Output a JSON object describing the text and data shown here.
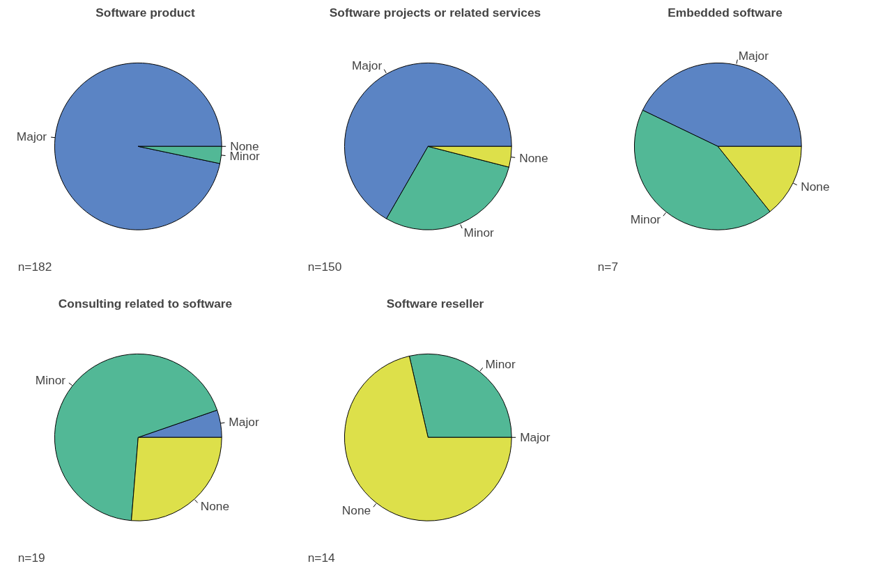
{
  "chart_data": [
    {
      "type": "pie",
      "title": "Software product",
      "categories": [
        "Major",
        "Minor",
        "None"
      ],
      "values": [
        96.7,
        3.3,
        0
      ],
      "colors": [
        "#5b84c4",
        "#52b896",
        "#dde04a"
      ],
      "annotations": [
        "n=182"
      ]
    },
    {
      "type": "pie",
      "title": "Software projects or related services",
      "categories": [
        "Major",
        "Minor",
        "None"
      ],
      "values": [
        66.7,
        29.3,
        4.0
      ],
      "colors": [
        "#5b84c4",
        "#52b896",
        "#dde04a"
      ],
      "annotations": [
        "n=150"
      ]
    },
    {
      "type": "pie",
      "title": "Embedded software",
      "categories": [
        "Major",
        "Minor",
        "None"
      ],
      "values": [
        42.86,
        42.86,
        14.28
      ],
      "colors": [
        "#5b84c4",
        "#52b896",
        "#dde04a"
      ],
      "annotations": [
        "n=7"
      ]
    },
    {
      "type": "pie",
      "title": "Consulting related to software",
      "categories": [
        "Major",
        "Minor",
        "None"
      ],
      "values": [
        5.3,
        68.4,
        26.3
      ],
      "colors": [
        "#5b84c4",
        "#52b896",
        "#dde04a"
      ],
      "annotations": [
        "n=19"
      ]
    },
    {
      "type": "pie",
      "title": "Software reseller",
      "categories": [
        "Major",
        "Minor",
        "None"
      ],
      "values": [
        0,
        28.6,
        71.4
      ],
      "colors": [
        "#5b84c4",
        "#52b896",
        "#dde04a"
      ],
      "annotations": [
        "n=14"
      ]
    }
  ]
}
